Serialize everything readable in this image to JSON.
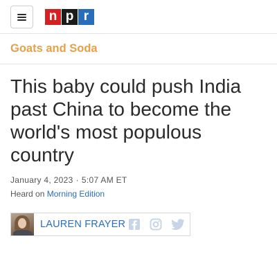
{
  "header": {
    "menu_icon": "hamburger-menu-icon",
    "logo": {
      "letters": [
        "n",
        "p",
        "r"
      ],
      "colors": [
        "#d62021",
        "#1b1b1b",
        "#2a6ebb"
      ]
    }
  },
  "section": {
    "title": "Goats and Soda",
    "color": "#e3a24a"
  },
  "article": {
    "headline": "This baby could push India past China to become the world's most populous country",
    "date": "January 4, 2023",
    "time": "5:07 AM ET",
    "heard_prefix": "Heard on",
    "heard_show": "Morning Edition"
  },
  "byline": {
    "author": "LAUREN FRAYER",
    "social_icons": [
      "facebook-icon",
      "instagram-icon",
      "twitter-icon"
    ]
  }
}
